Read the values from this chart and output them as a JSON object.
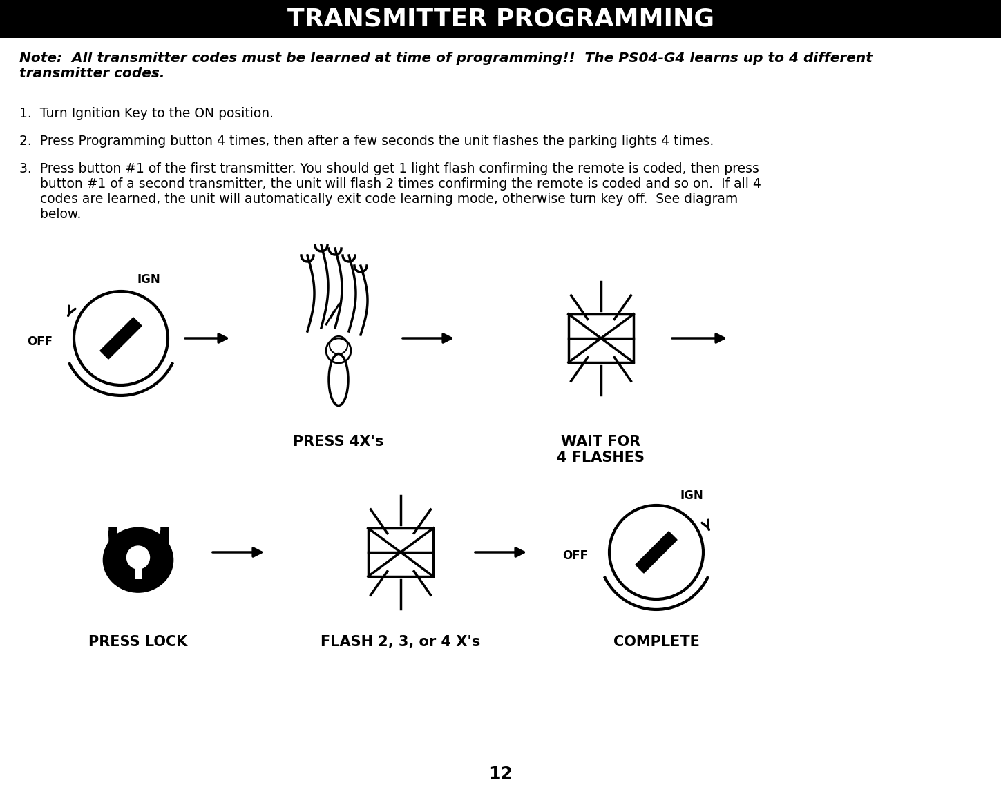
{
  "title": "TRANSMITTER PROGRAMMING",
  "title_bg": "#000000",
  "title_fg": "#ffffff",
  "note_text": "Note:  All transmitter codes must be learned at time of programming!!  The PS04-G4 learns up to 4 different\ntransmitter codes.",
  "step1": "1.  Turn Ignition Key to the ON position.",
  "step2": "2.  Press Programming button 4 times, then after a few seconds the unit flashes the parking lights 4 times.",
  "step3": "3.  Press button #1 of the first transmitter. You should get 1 light flash confirming the remote is coded, then press\n     button #1 of a second transmitter, the unit will flash 2 times confirming the remote is coded and so on.  If all 4\n     codes are learned, the unit will automatically exit code learning mode, otherwise turn key off.  See diagram\n     below.",
  "label_press4x": "PRESS 4X's",
  "label_waitfor": "WAIT FOR\n4 FLASHES",
  "label_presslock": "PRESS LOCK",
  "label_flash234": "FLASH 2, 3, or 4 X's",
  "label_complete": "COMPLETE",
  "page_number": "12",
  "fg_color": "#000000",
  "bg_color": "#ffffff"
}
